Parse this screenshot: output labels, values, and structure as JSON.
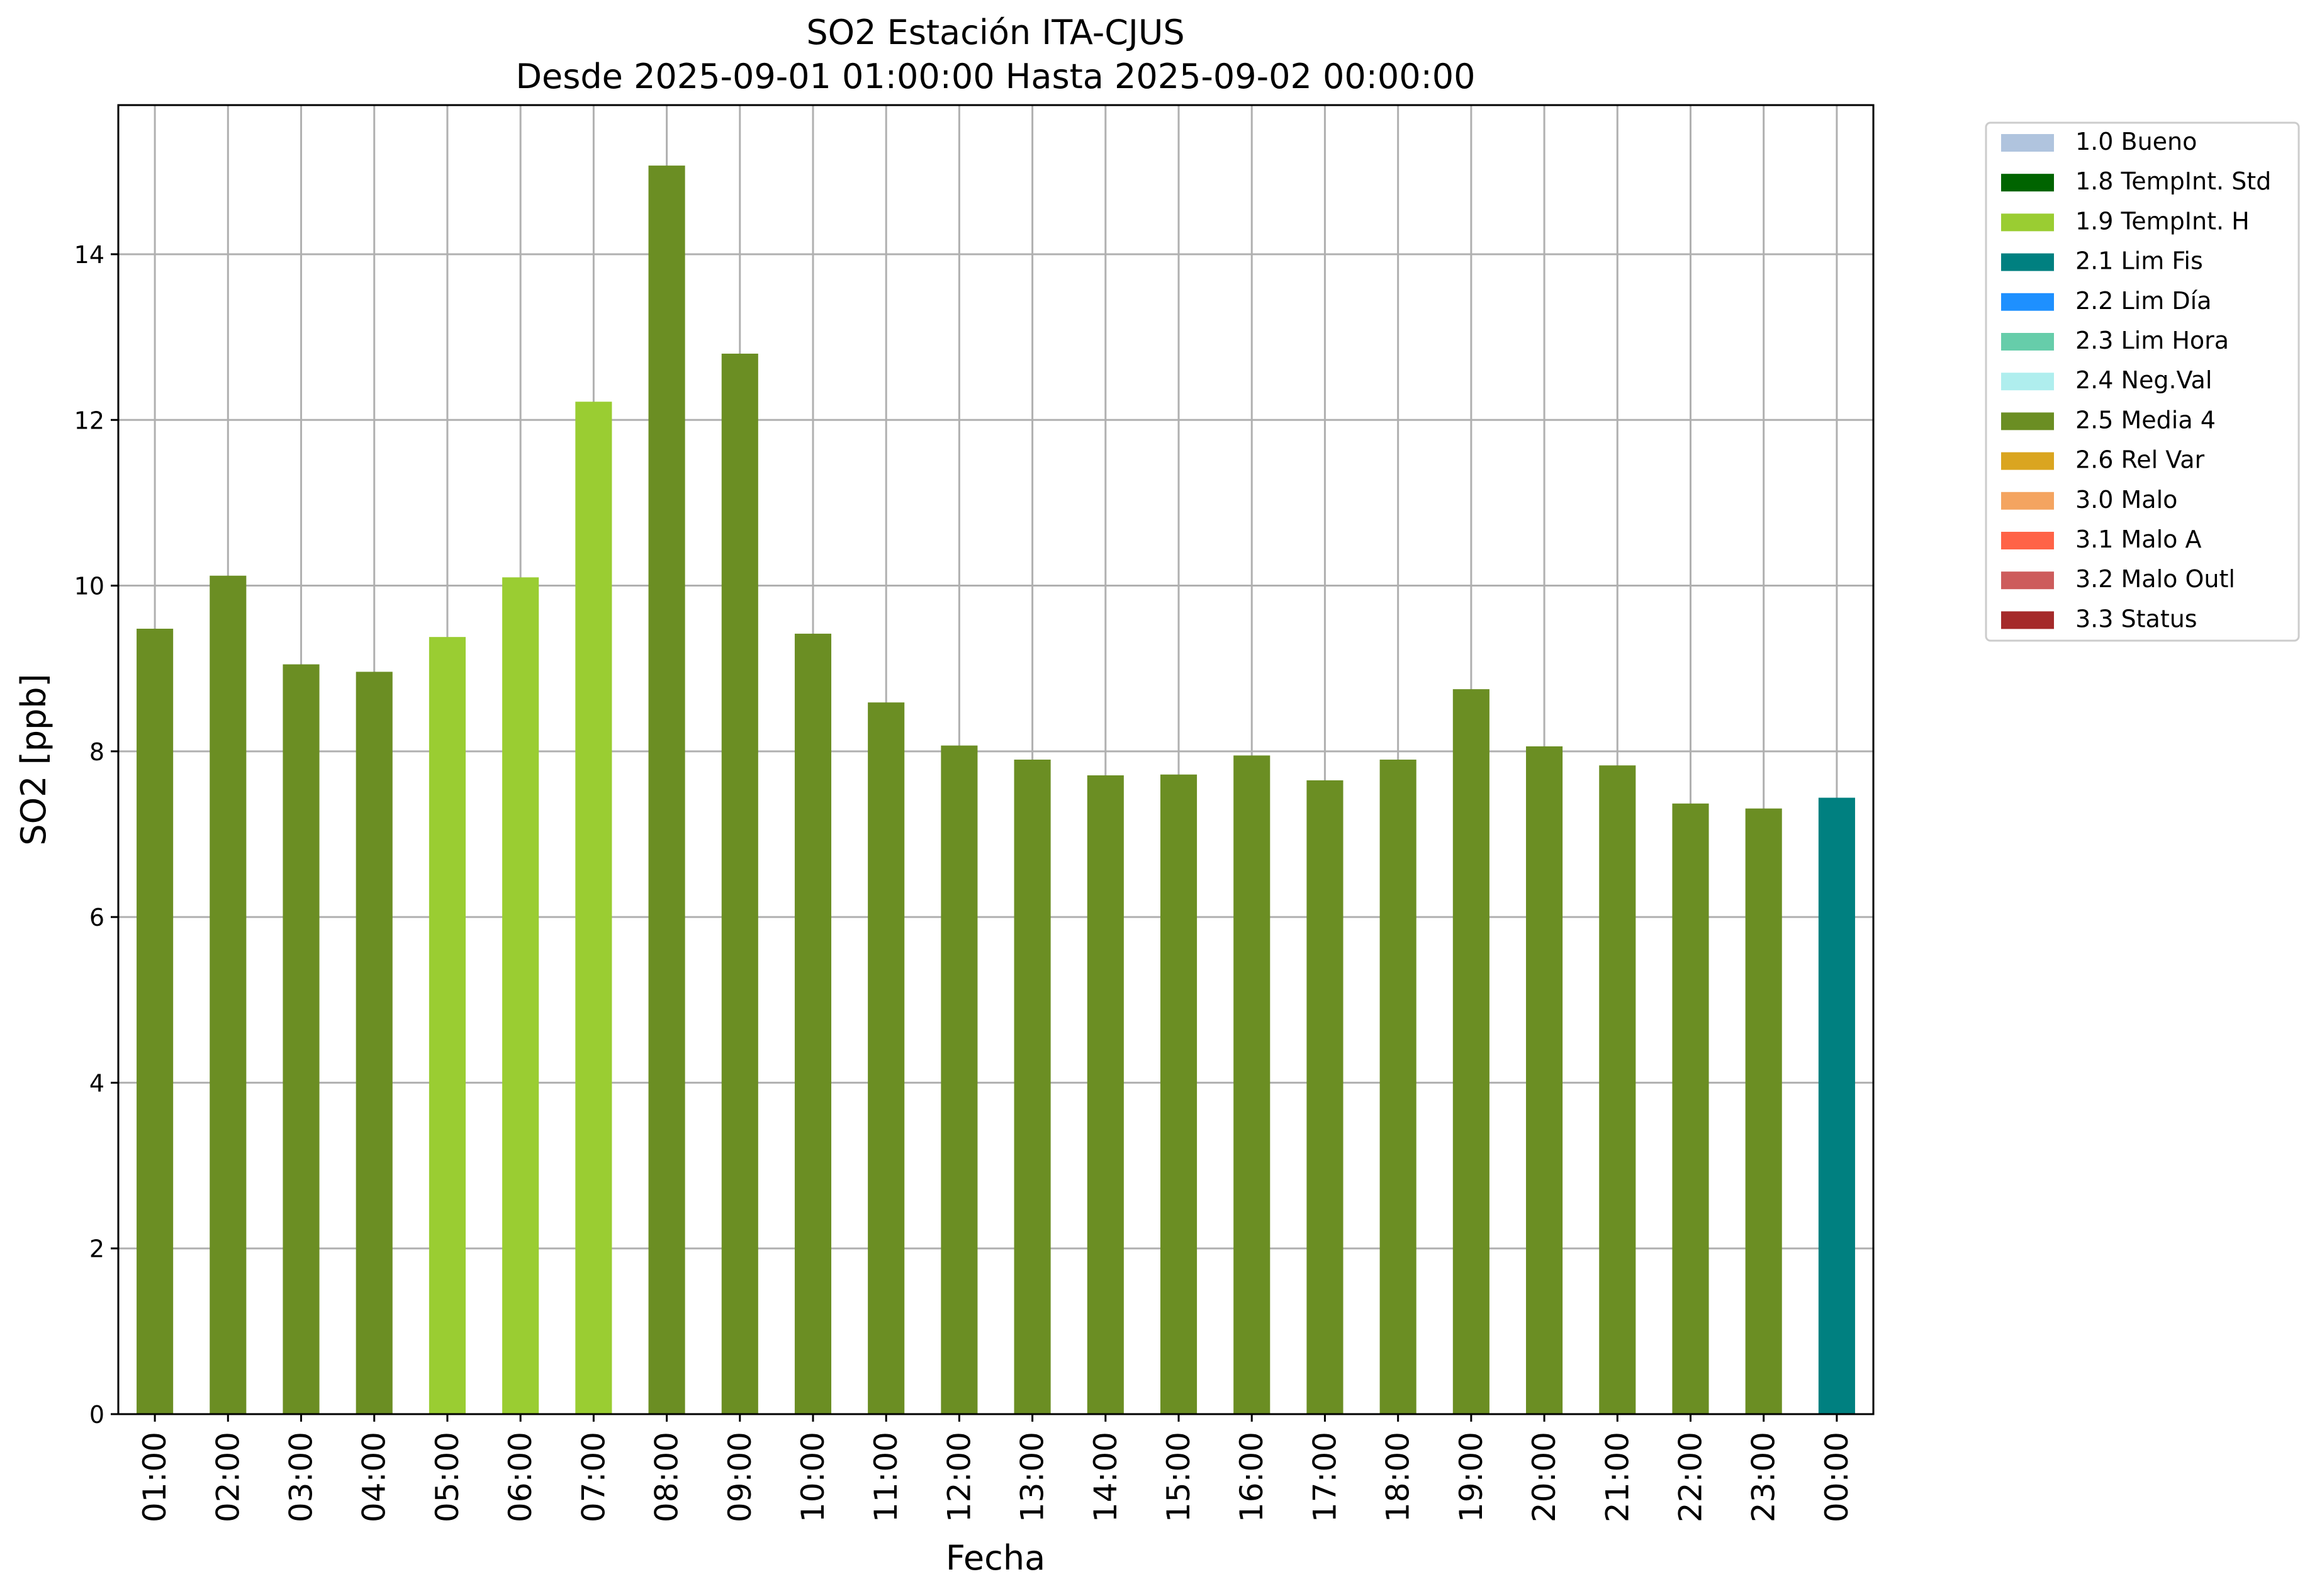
{
  "chart_data": {
    "type": "bar",
    "title": "SO2 Estación ITA-CJUS",
    "subtitle": "Desde 2025-09-01 01:00:00 Hasta 2025-09-02 00:00:00",
    "xlabel": "Fecha",
    "ylabel": "SO2 [ppb]",
    "ylim": [
      0,
      15.8
    ],
    "yticks": [
      0,
      2,
      4,
      6,
      8,
      10,
      12,
      14
    ],
    "grid": true,
    "legend_position": "outside-top-right",
    "categories": [
      "01:00",
      "02:00",
      "03:00",
      "04:00",
      "05:00",
      "06:00",
      "07:00",
      "08:00",
      "09:00",
      "10:00",
      "11:00",
      "12:00",
      "13:00",
      "14:00",
      "15:00",
      "16:00",
      "17:00",
      "18:00",
      "19:00",
      "20:00",
      "21:00",
      "22:00",
      "23:00",
      "00:00"
    ],
    "values": [
      9.48,
      10.12,
      9.05,
      8.96,
      9.38,
      10.1,
      12.22,
      15.07,
      12.8,
      9.42,
      8.59,
      8.07,
      7.9,
      7.71,
      7.72,
      7.95,
      7.65,
      7.9,
      8.75,
      8.06,
      7.83,
      7.37,
      7.31,
      7.44
    ],
    "flags": [
      "2.5 Media 4",
      "2.5 Media 4",
      "2.5 Media 4",
      "2.5 Media 4",
      "1.9 TempInt. H",
      "1.9 TempInt. H",
      "1.9 TempInt. H",
      "2.5 Media 4",
      "2.5 Media 4",
      "2.5 Media 4",
      "2.5 Media 4",
      "2.5 Media 4",
      "2.5 Media 4",
      "2.5 Media 4",
      "2.5 Media 4",
      "2.5 Media 4",
      "2.5 Media 4",
      "2.5 Media 4",
      "2.5 Media 4",
      "2.5 Media 4",
      "2.5 Media 4",
      "2.5 Media 4",
      "2.5 Media 4",
      "2.1 Lim Fis"
    ],
    "legend": [
      {
        "label": "1.0 Bueno",
        "color": "#b0c4de"
      },
      {
        "label": "1.8 TempInt. Std",
        "color": "#006400"
      },
      {
        "label": "1.9 TempInt. H",
        "color": "#9acd32"
      },
      {
        "label": "2.1 Lim Fis",
        "color": "#008080"
      },
      {
        "label": "2.2 Lim Día",
        "color": "#1e90ff"
      },
      {
        "label": "2.3 Lim Hora",
        "color": "#66cdaa"
      },
      {
        "label": "2.4 Neg.Val",
        "color": "#afeeee"
      },
      {
        "label": "2.5 Media 4",
        "color": "#6b8e23"
      },
      {
        "label": "2.6 Rel Var",
        "color": "#daa520"
      },
      {
        "label": "3.0 Malo",
        "color": "#f4a460"
      },
      {
        "label": "3.1 Malo A",
        "color": "#ff6347"
      },
      {
        "label": "3.2 Malo Outl",
        "color": "#cd5c5c"
      },
      {
        "label": "3.3 Status",
        "color": "#a52a2a"
      }
    ]
  }
}
